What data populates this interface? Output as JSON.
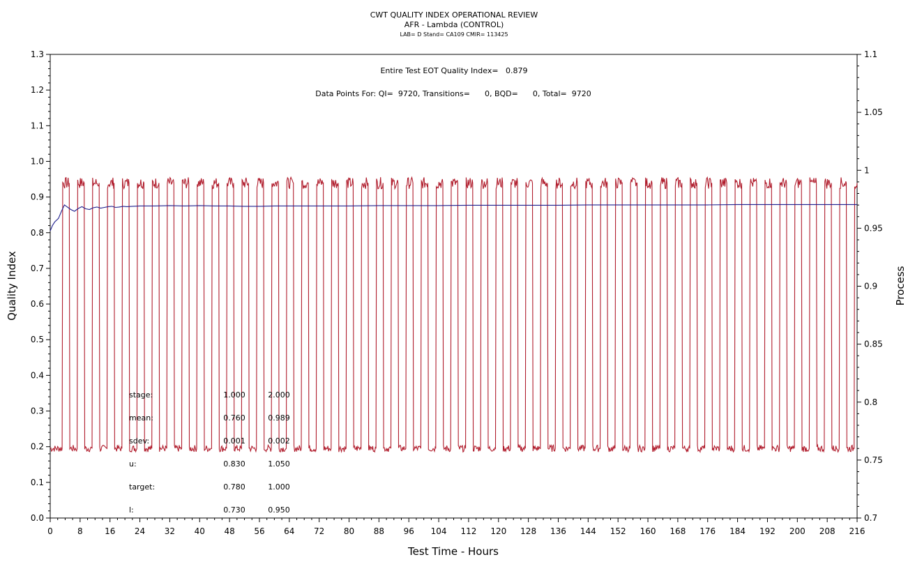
{
  "chart_data": {
    "type": "line",
    "title": "CWT QUALITY INDEX OPERATIONAL REVIEW",
    "subtitle": "AFR - Lambda (CONTROL)",
    "subtitle2": "LAB= D Stand= CA109 CMIR= 113425",
    "annotation_qi": "Entire Test EOT Quality Index=   0.879",
    "annotation_points": "Data Points For: QI=  9720, Transitions=      0, BQD=      0, Total=  9720",
    "xlabel": "Test Time - Hours",
    "ylabel": "Quality Index",
    "y2label": "Process",
    "xlim": [
      0,
      216
    ],
    "ylim": [
      0,
      1.3
    ],
    "y2lim": [
      0.7,
      1.1
    ],
    "x_ticks": [
      "0",
      "8",
      "16",
      "24",
      "32",
      "40",
      "48",
      "56",
      "64",
      "72",
      "80",
      "88",
      "96",
      "104",
      "112",
      "120",
      "128",
      "136",
      "144",
      "152",
      "160",
      "168",
      "176",
      "184",
      "192",
      "200",
      "208",
      "216"
    ],
    "y_ticks": [
      "0.0",
      "0.1",
      "0.2",
      "0.3",
      "0.4",
      "0.5",
      "0.6",
      "0.7",
      "0.8",
      "0.9",
      "1.0",
      "1.1",
      "1.2",
      "1.3"
    ],
    "y2_ticks": [
      "0.7",
      "0.75",
      "0.8",
      "0.85",
      "0.9",
      "0.95",
      "1",
      "1.05",
      "1.1"
    ],
    "series": [
      {
        "axis": "left",
        "color": "#1c1c8c",
        "points": [
          [
            0,
            0.805
          ],
          [
            0.6,
            0.82
          ],
          [
            1.2,
            0.83
          ],
          [
            2.2,
            0.84
          ],
          [
            3.0,
            0.86
          ],
          [
            3.8,
            0.878
          ],
          [
            4.6,
            0.872
          ],
          [
            5.5,
            0.865
          ],
          [
            6.5,
            0.86
          ],
          [
            7.5,
            0.868
          ],
          [
            8.5,
            0.873
          ],
          [
            9.5,
            0.867
          ],
          [
            10.5,
            0.865
          ],
          [
            11.5,
            0.87
          ],
          [
            12.5,
            0.872
          ],
          [
            13.5,
            0.869
          ],
          [
            14.5,
            0.871
          ],
          [
            15.5,
            0.873
          ],
          [
            16.5,
            0.874
          ],
          [
            17.5,
            0.871
          ],
          [
            18.5,
            0.872
          ],
          [
            19.5,
            0.874
          ],
          [
            20.5,
            0.873
          ],
          [
            22,
            0.874
          ],
          [
            24,
            0.875
          ],
          [
            28,
            0.875
          ],
          [
            32,
            0.876
          ],
          [
            36,
            0.875
          ],
          [
            40,
            0.876
          ],
          [
            44,
            0.875
          ],
          [
            48,
            0.875
          ],
          [
            52,
            0.874
          ],
          [
            56,
            0.874
          ],
          [
            60,
            0.875
          ],
          [
            64,
            0.875
          ],
          [
            72,
            0.875
          ],
          [
            80,
            0.875
          ],
          [
            88,
            0.876
          ],
          [
            96,
            0.876
          ],
          [
            104,
            0.876
          ],
          [
            112,
            0.877
          ],
          [
            120,
            0.877
          ],
          [
            128,
            0.877
          ],
          [
            136,
            0.877
          ],
          [
            144,
            0.878
          ],
          [
            152,
            0.878
          ],
          [
            160,
            0.878
          ],
          [
            168,
            0.878
          ],
          [
            176,
            0.878
          ],
          [
            184,
            0.879
          ],
          [
            192,
            0.879
          ],
          [
            200,
            0.879
          ],
          [
            208,
            0.879
          ],
          [
            216,
            0.879
          ]
        ]
      },
      {
        "axis": "right",
        "color": "#b01c2c",
        "low": 0.76,
        "high": 0.989,
        "cycle_hours": 4,
        "first_rise_hours": 3.2,
        "high_duration_hours": 1.9,
        "end_hours": 216
      }
    ],
    "stats_table": {
      "rows": [
        {
          "label": "stage:",
          "v1": "1.000",
          "v2": "2.000"
        },
        {
          "label": "mean:",
          "v1": "0.760",
          "v2": "0.989"
        },
        {
          "label": "sdev:",
          "v1": "0.001",
          "v2": "0.002"
        },
        {
          "label": "u:",
          "v1": "0.830",
          "v2": "1.050"
        },
        {
          "label": "target:",
          "v1": "0.780",
          "v2": "1.000"
        },
        {
          "label": "l:",
          "v1": "0.730",
          "v2": "0.950"
        }
      ]
    },
    "grid": false
  }
}
